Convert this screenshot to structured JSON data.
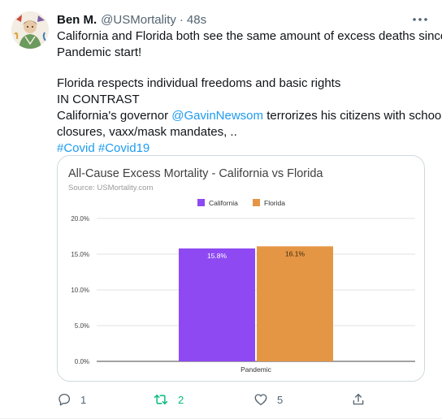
{
  "tweet": {
    "display_name": "Ben M.",
    "handle": "@USMortality",
    "separator": "·",
    "time": "48s",
    "line1": "California and Florida both see the same amount of excess deaths since",
    "line2": "Pandemic start!",
    "line3": "Florida respects individual freedoms and basic rights",
    "line4": "IN CONTRAST",
    "line5_pre": "California's governor ",
    "line5_mention": "@GavinNewsom",
    "line5_post": " terrorizes his citizens with school",
    "line6": "closures, vaxx/mask mandates, ..",
    "hashtag1": "#Covid",
    "hashtag2": "#Covid19"
  },
  "actions": {
    "reply_count": "1",
    "retweet_count": "2",
    "like_count": "5"
  },
  "colors": {
    "california": "#8e49f2",
    "florida": "#e59645",
    "link": "#1d9bf0",
    "retweet_active": "#00ba7c",
    "muted": "#536471"
  },
  "icons": {
    "reply": "reply-icon",
    "retweet": "retweet-icon",
    "like": "heart-icon",
    "share": "share-icon",
    "more": "more-icon"
  },
  "chart_data": {
    "type": "bar",
    "title": "All-Cause Excess Mortality - California vs Florida",
    "subtitle": "Source: USMortality.com",
    "categories": [
      "Pandemic"
    ],
    "series": [
      {
        "name": "California",
        "values": [
          15.8
        ],
        "label": "15.8%",
        "color": "#8e49f2"
      },
      {
        "name": "Florida",
        "values": [
          16.1
        ],
        "label": "16.1%",
        "color": "#e59645"
      }
    ],
    "ylim": [
      0,
      20
    ],
    "yticks": [
      "0.0%",
      "5.0%",
      "10.0%",
      "15.0%",
      "20.0%"
    ],
    "ytick_values": [
      0,
      5,
      10,
      15,
      20
    ],
    "grid": true,
    "legend": "top-center"
  }
}
